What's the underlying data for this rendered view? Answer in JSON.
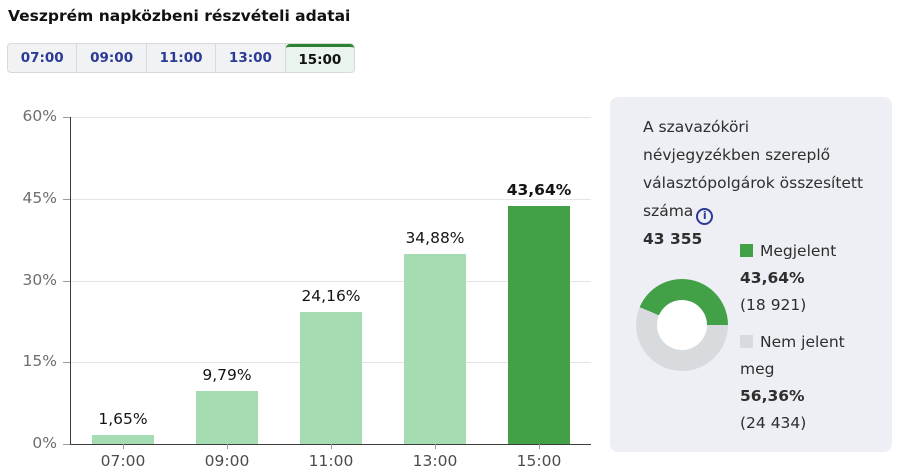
{
  "title": "Veszprém napközbeni részvételi adatai",
  "tabs": {
    "active_index": 4,
    "items": [
      {
        "label": "07:00"
      },
      {
        "label": "09:00"
      },
      {
        "label": "11:00"
      },
      {
        "label": "13:00"
      },
      {
        "label": "15:00"
      }
    ]
  },
  "panel": {
    "description": "A szavazóköri névjegyzékben szereplő választópolgárok összesített száma",
    "info_icon": "info-icon",
    "total": "43 355"
  },
  "colors": {
    "bar_default": "#a5dcb2",
    "bar_active": "#42a047",
    "donut_green": "#42a047",
    "donut_gray": "#d8dbde",
    "tab_text_navy": "#2b3a94",
    "active_tab_border": "#2e8033",
    "panel_background": "#edeff4"
  },
  "chart_data": [
    {
      "type": "bar",
      "title": "Veszprém napközbeni részvételi adatai",
      "categories": [
        "07:00",
        "09:00",
        "11:00",
        "13:00",
        "15:00"
      ],
      "values": [
        1.65,
        9.79,
        24.16,
        34.88,
        43.64
      ],
      "value_labels": [
        "1,65%",
        "9,79%",
        "24,16%",
        "34,88%",
        "43,64%"
      ],
      "active_index": 4,
      "xlabel": "",
      "ylabel": "",
      "ylim": [
        0,
        60
      ],
      "yticks": [
        {
          "value": 0,
          "label": "0%"
        },
        {
          "value": 15,
          "label": "15%"
        },
        {
          "value": 30,
          "label": "30%"
        },
        {
          "value": 45,
          "label": "45%"
        },
        {
          "value": 60,
          "label": "60%"
        }
      ],
      "grid": true,
      "legend_position": "none"
    },
    {
      "type": "pie",
      "subtype": "donut",
      "slices": [
        {
          "label": "Megjelent",
          "value": 43.64,
          "pct_label": "43,64%",
          "count_label": "(18 921)",
          "color": "#42a047"
        },
        {
          "label": "Nem jelent meg",
          "value": 56.36,
          "pct_label": "56,36%",
          "count_label": "(24 434)",
          "color": "#d8dbde"
        }
      ],
      "legend_position": "right"
    }
  ]
}
